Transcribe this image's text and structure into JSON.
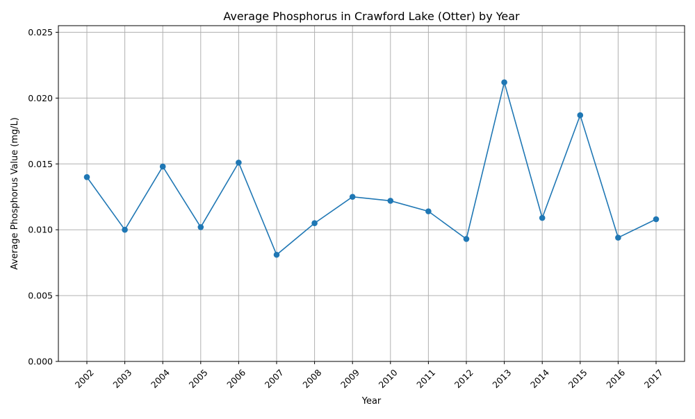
{
  "chart_data": {
    "type": "line",
    "title": "Average Phosphorus in Crawford Lake (Otter) by Year",
    "xlabel": "Year",
    "ylabel": "Average Phosphorus Value (mg/L)",
    "categories": [
      "2002",
      "2003",
      "2004",
      "2005",
      "2006",
      "2007",
      "2008",
      "2009",
      "2010",
      "2011",
      "2012",
      "2013",
      "2014",
      "2015",
      "2016",
      "2017"
    ],
    "series": [
      {
        "values": [
          0.014,
          0.01,
          0.0148,
          0.0102,
          0.0151,
          0.0081,
          0.0105,
          0.0125,
          0.0122,
          0.0114,
          0.0093,
          0.0212,
          0.0109,
          0.0187,
          0.0094,
          0.0108
        ],
        "color": "#1f77b4",
        "marker": "circle"
      }
    ],
    "ylim": [
      0,
      0.0255
    ],
    "yticks": [
      "0.000",
      "0.005",
      "0.010",
      "0.015",
      "0.020",
      "0.025"
    ],
    "ytick_values": [
      0,
      0.005,
      0.01,
      0.015,
      0.02,
      0.025
    ],
    "grid": true,
    "x_tick_rotation": 45
  }
}
